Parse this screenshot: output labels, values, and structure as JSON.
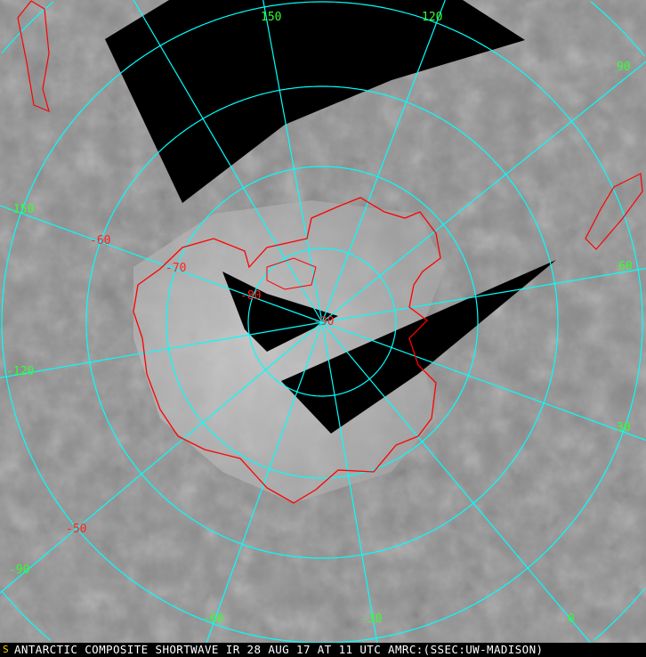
{
  "caption": "ANTARCTIC COMPOSITE SHORTWAVE IR 28 AUG 17 AT 11 UTC AMRC:(SSEC:UW-MADISON)",
  "logo_glyph": "S",
  "longitude_labels": [
    "150",
    "120",
    "90",
    "60",
    "30",
    "0",
    "-30",
    "-60",
    "-90",
    "-120",
    "-150"
  ],
  "latitude_labels": [
    "-50",
    "-60",
    "-70",
    "-80",
    "-90"
  ],
  "colors": {
    "grid": "#00ffff",
    "coast": "#ff0000",
    "longitude_label": "#33ff33",
    "latitude_label": "#ff2222",
    "caption_bg": "#000000",
    "caption_text": "#ffffff"
  }
}
